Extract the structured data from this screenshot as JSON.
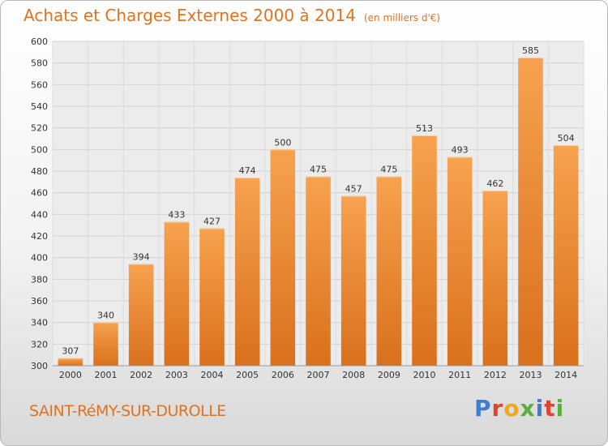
{
  "chart_data": {
    "type": "bar",
    "title": "Achats et Charges Externes 2000 à 2014",
    "unit_label": "(en milliers d'€)",
    "categories": [
      "2000",
      "2001",
      "2002",
      "2003",
      "2004",
      "2005",
      "2006",
      "2007",
      "2008",
      "2009",
      "2010",
      "2011",
      "2012",
      "2013",
      "2014"
    ],
    "values": [
      307,
      340,
      394,
      433,
      427,
      474,
      500,
      475,
      457,
      475,
      513,
      493,
      462,
      585,
      504
    ],
    "ylim": [
      300,
      600
    ],
    "yticks": [
      300,
      320,
      340,
      360,
      380,
      400,
      420,
      440,
      460,
      480,
      500,
      520,
      540,
      560,
      580,
      600
    ],
    "grid": true,
    "bar_color": "#f0913a"
  },
  "footer": {
    "city": "SAINT-RéMY-SUR-DUROLLE"
  },
  "logo": {
    "letters": [
      {
        "char": "P",
        "color": "#3a7fd1"
      },
      {
        "char": "r",
        "color": "#e4422f"
      },
      {
        "char": "o",
        "color": "#f2a61e"
      },
      {
        "char": "x",
        "color": "#5bb03c"
      },
      {
        "char": "i",
        "color": "#3a7fd1"
      },
      {
        "char": "t",
        "color": "#e4422f"
      },
      {
        "char": "i",
        "color": "#5bb03c"
      }
    ]
  }
}
